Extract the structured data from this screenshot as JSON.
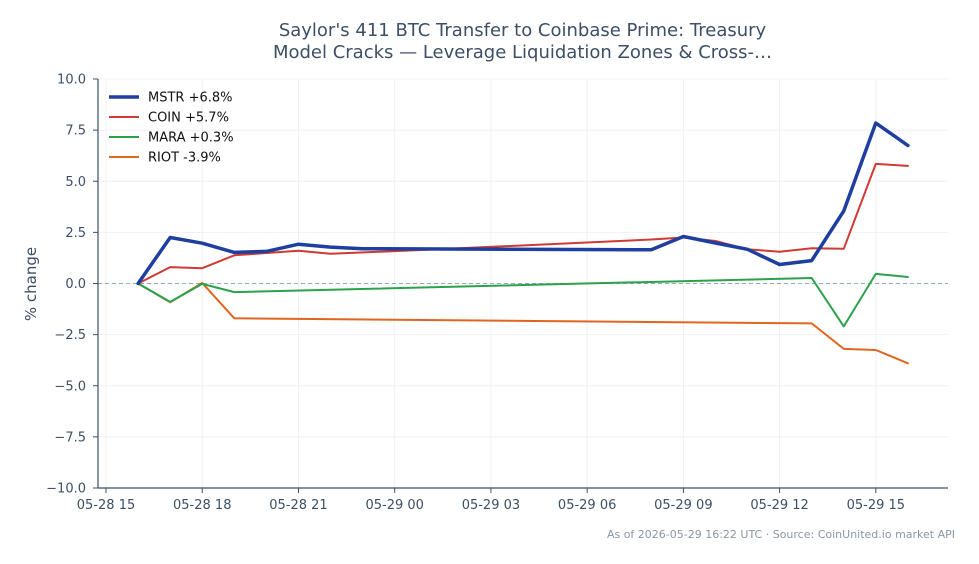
{
  "chart_data": {
    "type": "line",
    "title_lines": [
      "Saylor's 411 BTC Transfer to Coinbase Prime: Treasury",
      "Model Cracks — Leverage Liquidation Zones & Cross-…"
    ],
    "xlabel": "",
    "ylabel": "% change",
    "ylim": [
      -10,
      10
    ],
    "yticks": [
      -10,
      -7.5,
      -5,
      -2.5,
      0,
      2.5,
      5,
      7.5,
      10
    ],
    "ytick_labels": [
      "−10.0",
      "−7.5",
      "−5.0",
      "−2.5",
      "0.0",
      "2.5",
      "5.0",
      "7.5",
      "10.0"
    ],
    "xlim": [
      "2026-05-28 14:45",
      "2026-05-29 17:15"
    ],
    "xticks": [
      "2026-05-28 15:00",
      "2026-05-28 18:00",
      "2026-05-28 21:00",
      "2026-05-29 00:00",
      "2026-05-29 03:00",
      "2026-05-29 06:00",
      "2026-05-29 09:00",
      "2026-05-29 12:00",
      "2026-05-29 15:00"
    ],
    "xtick_labels": [
      "05-28 15",
      "05-28 18",
      "05-28 21",
      "05-29 00",
      "05-29 03",
      "05-29 06",
      "05-29 09",
      "05-29 12",
      "05-29 15"
    ],
    "grid": true,
    "zero_line": true,
    "legend_position": "top-left",
    "series": [
      {
        "name": "MSTR +6.8%",
        "color": "#1f3fa0",
        "width": 3.5,
        "x": [
          "2026-05-28 16:00",
          "2026-05-28 17:00",
          "2026-05-28 18:00",
          "2026-05-28 19:00",
          "2026-05-28 20:00",
          "2026-05-28 21:00",
          "2026-05-28 22:00",
          "2026-05-28 23:00",
          "2026-05-29 08:00",
          "2026-05-29 09:00",
          "2026-05-29 10:00",
          "2026-05-29 11:00",
          "2026-05-29 12:00",
          "2026-05-29 13:00",
          "2026-05-29 14:00",
          "2026-05-29 15:00",
          "2026-05-29 16:00"
        ],
        "y": [
          0.0,
          2.25,
          1.97,
          1.52,
          1.57,
          1.92,
          1.78,
          1.7,
          1.65,
          2.3,
          1.98,
          1.67,
          0.93,
          1.12,
          3.55,
          7.85,
          6.75
        ]
      },
      {
        "name": "COIN +5.7%",
        "color": "#d03a32",
        "width": 2,
        "x": [
          "2026-05-28 16:00",
          "2026-05-28 17:00",
          "2026-05-28 18:00",
          "2026-05-28 19:00",
          "2026-05-28 21:00",
          "2026-05-28 22:00",
          "2026-05-29 01:00",
          "2026-05-29 08:00",
          "2026-05-29 09:00",
          "2026-05-29 10:00",
          "2026-05-29 11:00",
          "2026-05-29 12:00",
          "2026-05-29 13:00",
          "2026-05-29 14:00",
          "2026-05-29 15:00",
          "2026-05-29 16:00"
        ],
        "y": [
          0.0,
          0.8,
          0.75,
          1.38,
          1.6,
          1.45,
          1.65,
          2.15,
          2.25,
          2.08,
          1.67,
          1.55,
          1.72,
          1.7,
          5.85,
          5.75
        ]
      },
      {
        "name": "MARA +0.3%",
        "color": "#2aa24c",
        "width": 2,
        "x": [
          "2026-05-28 16:00",
          "2026-05-28 17:00",
          "2026-05-28 18:00",
          "2026-05-28 19:00",
          "2026-05-29 13:00",
          "2026-05-29 14:00",
          "2026-05-29 15:00",
          "2026-05-29 16:00"
        ],
        "y": [
          0.0,
          -0.9,
          -0.02,
          -0.42,
          0.27,
          -2.1,
          0.47,
          0.32
        ]
      },
      {
        "name": "RIOT -3.9%",
        "color": "#e0651f",
        "width": 2,
        "x": [
          "2026-05-28 16:00",
          "2026-05-28 17:00",
          "2026-05-28 18:00",
          "2026-05-28 19:00",
          "2026-05-29 13:00",
          "2026-05-29 14:00",
          "2026-05-29 15:00",
          "2026-05-29 16:00"
        ],
        "y": [
          0.0,
          -0.92,
          0.03,
          -1.7,
          -1.95,
          -3.2,
          -3.25,
          -3.9
        ]
      }
    ]
  },
  "footer": "As of 2026-05-29 16:22 UTC · Source: CoinUnited.io market API"
}
